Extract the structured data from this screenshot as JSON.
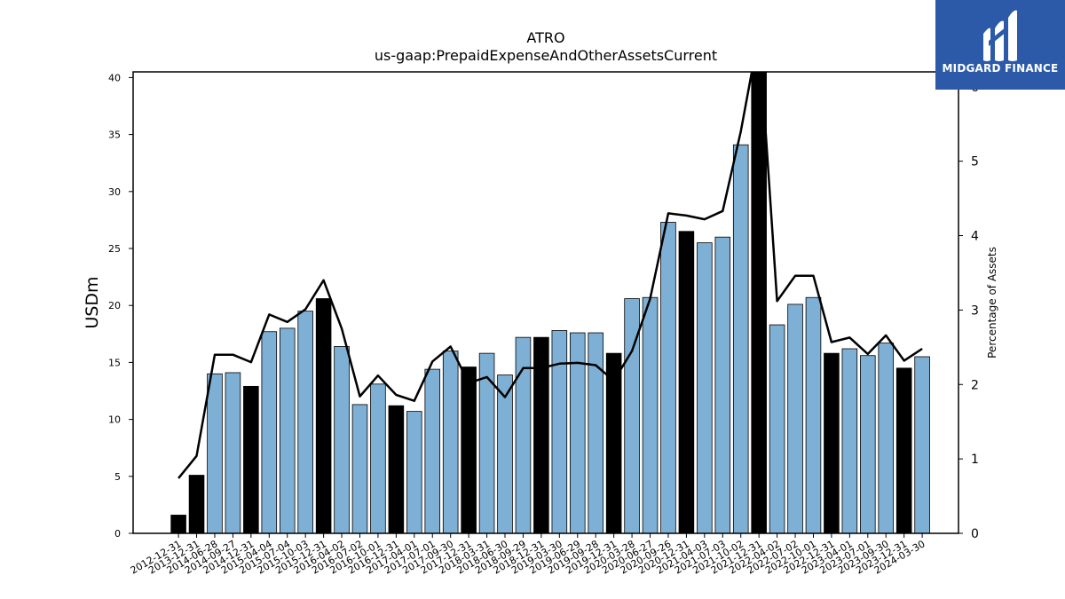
{
  "logo": {
    "text": "MIDGARD FINANCE"
  },
  "chart_data": {
    "type": "bar",
    "title": "ATRO",
    "subtitle": "us-gaap:PrepaidExpenseAndOtherAssetsCurrent",
    "ylabel": "USDm",
    "y2label": "Percentage of Assets",
    "ylim": [
      0,
      40.5
    ],
    "y2lim": [
      0,
      6.2
    ],
    "yticks": [
      0,
      5,
      10,
      15,
      20,
      25,
      30,
      35,
      40
    ],
    "y2ticks": [
      0,
      1,
      2,
      3,
      4,
      5,
      6
    ],
    "categories": [
      "2012-12-31",
      "2013-12-31",
      "2014-06-28",
      "2014-09-27",
      "2014-12-31",
      "2015-04-04",
      "2015-07-04",
      "2015-10-03",
      "2015-12-31",
      "2016-04-02",
      "2016-07-02",
      "2016-10-01",
      "2016-12-31",
      "2017-04-01",
      "2017-07-01",
      "2017-09-30",
      "2017-12-31",
      "2018-03-31",
      "2018-06-30",
      "2018-09-29",
      "2018-12-31",
      "2019-03-30",
      "2019-06-29",
      "2019-09-28",
      "2019-12-31",
      "2020-03-28",
      "2020-06-27",
      "2020-09-26",
      "2020-12-31",
      "2021-04-03",
      "2021-07-03",
      "2021-10-02",
      "2021-12-31",
      "2022-04-02",
      "2022-07-02",
      "2022-10-01",
      "2022-12-31",
      "2023-04-01",
      "2023-07-01",
      "2023-09-30",
      "2023-12-31",
      "2024-03-30"
    ],
    "series": [
      {
        "values": [
          1.6,
          5.1,
          14.0,
          14.1,
          12.9,
          17.7,
          18.0,
          19.5,
          20.6,
          16.4,
          11.3,
          13.1,
          11.2,
          10.7,
          14.4,
          16.0,
          14.6,
          15.8,
          13.9,
          17.2,
          17.2,
          17.8,
          17.6,
          17.6,
          15.8,
          20.6,
          20.7,
          27.3,
          26.5,
          25.5,
          26.0,
          34.1,
          40.6,
          18.3,
          20.1,
          20.7,
          15.8,
          16.2,
          15.6,
          16.7,
          14.5,
          15.5
        ],
        "year_end": [
          true,
          true,
          false,
          false,
          true,
          false,
          false,
          false,
          true,
          false,
          false,
          false,
          true,
          false,
          false,
          false,
          true,
          false,
          false,
          false,
          true,
          false,
          false,
          false,
          true,
          false,
          false,
          false,
          true,
          false,
          false,
          false,
          true,
          false,
          false,
          false,
          true,
          false,
          false,
          false,
          true,
          false
        ]
      },
      {
        "values": [
          0.74,
          1.04,
          2.4,
          2.4,
          2.3,
          2.94,
          2.84,
          3.01,
          3.4,
          2.75,
          1.84,
          2.12,
          1.86,
          1.78,
          2.31,
          2.51,
          2.02,
          2.1,
          1.83,
          2.22,
          2.22,
          2.28,
          2.29,
          2.26,
          2.05,
          2.45,
          3.15,
          4.3,
          4.27,
          4.22,
          4.33,
          5.4,
          6.72,
          3.12,
          3.46,
          3.46,
          2.57,
          2.63,
          2.41,
          2.66,
          2.32,
          2.48
        ]
      }
    ],
    "colors": {
      "quarter_bar": "#7eb0d5",
      "year_end_bar": "#000000",
      "line": "#000000"
    }
  }
}
